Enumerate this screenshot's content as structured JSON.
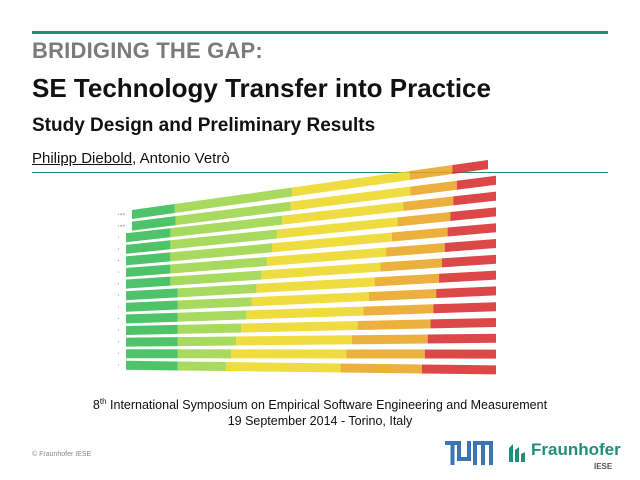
{
  "slide": {
    "title_line1": "BRIDIGING THE GAP:",
    "title_line2": "SE Technology Transfer into Practice",
    "subtitle": "Study Design and Preliminary Results",
    "author_1": "Philipp Diebold",
    "author_sep": ", ",
    "author_2": "Antonio Vetrò",
    "conference_ordinal": "8",
    "conference_ordinal_sup": "th",
    "conference_name": " International Symposium on Empirical Software Engineering and Measurement",
    "conference_date_place": "19 September 2014 - Torino, Italy",
    "copyright": "© Fraunhofer IESE"
  },
  "logos": {
    "tum_icon": "tum-logo-icon",
    "fraunhofer_name": "Fraunhofer",
    "fraunhofer_sub": "IESE"
  },
  "colors": {
    "accent": "#1f8f7a",
    "title_gray": "#7b7b7b",
    "heat_green": "#2fb84f",
    "heat_lightgreen": "#9ad444",
    "heat_yellow": "#ecd61e",
    "heat_orange": "#e7a21b",
    "heat_red": "#d62828"
  }
}
